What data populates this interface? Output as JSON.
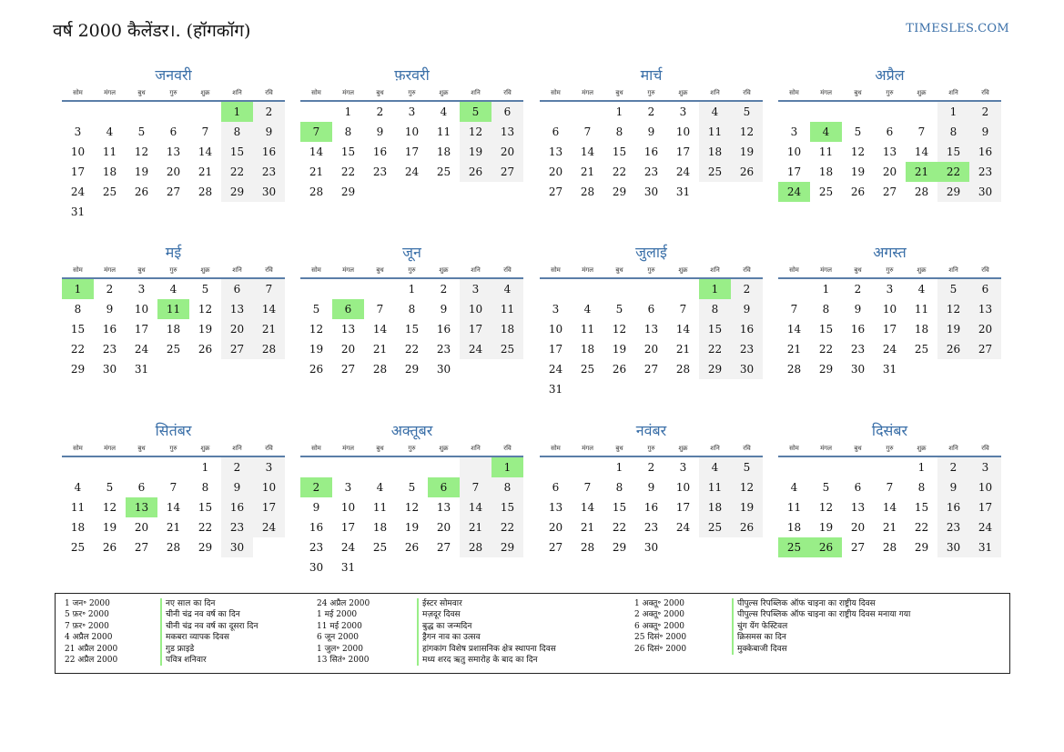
{
  "header": {
    "title": "वर्ष 2000 कैलेंडर।. (हॉगकॉग)",
    "site": "TIMESLES.COM"
  },
  "weekdays": [
    "सोम",
    "मंगल",
    "बुध",
    "गुरु",
    "शुक्र",
    "शनि",
    "रवि"
  ],
  "months": [
    {
      "name": "जनवरी",
      "offset": 5,
      "days": 31,
      "hol": [
        1
      ]
    },
    {
      "name": "फ़रवरी",
      "offset": 1,
      "days": 29,
      "hol": [
        5,
        7
      ]
    },
    {
      "name": "मार्च",
      "offset": 2,
      "days": 31,
      "hol": []
    },
    {
      "name": "अप्रैल",
      "offset": 5,
      "days": 30,
      "hol": [
        4,
        21,
        22,
        24
      ]
    },
    {
      "name": "मई",
      "offset": 0,
      "days": 31,
      "hol": [
        1,
        11
      ]
    },
    {
      "name": "जून",
      "offset": 3,
      "days": 30,
      "hol": [
        6
      ]
    },
    {
      "name": "जुलाई",
      "offset": 5,
      "days": 31,
      "hol": [
        1
      ]
    },
    {
      "name": "अगस्त",
      "offset": 1,
      "days": 31,
      "hol": []
    },
    {
      "name": "सितंबर",
      "offset": 4,
      "days": 30,
      "hol": [
        13
      ]
    },
    {
      "name": "अक्तूबर",
      "offset": 6,
      "days": 31,
      "hol": [
        1,
        2,
        6
      ]
    },
    {
      "name": "नवंबर",
      "offset": 2,
      "days": 30,
      "hol": []
    },
    {
      "name": "दिसंबर",
      "offset": 4,
      "days": 31,
      "hol": [
        25,
        26
      ]
    }
  ],
  "legend": {
    "col1_dates": [
      "1 जन॰ 2000",
      "5 फ़र॰ 2000",
      "7 फ़र॰ 2000",
      "4 अप्रैल 2000",
      "21 अप्रैल 2000",
      "22 अप्रैल 2000"
    ],
    "col1_names": [
      "नए साल का दिन",
      "चीनी चंद्र नव वर्ष का दिन",
      "चीनी चंद्र नव वर्ष का दूसरा दिन",
      "मकबरा व्यापक दिवस",
      "गुड फ्राइडे",
      "पवित्र शनिवार"
    ],
    "col2_dates": [
      "24 अप्रैल 2000",
      "1 मई 2000",
      "11 मई 2000",
      "6 जून 2000",
      "1 जुल॰ 2000",
      "13 सितं॰ 2000"
    ],
    "col2_names": [
      "ईस्टर सोमवार",
      "मज़दूर दिवस",
      "बुद्ध का जन्मदिन",
      "ड्रैगन नाव का उत्सव",
      "हांगकांग विशेष प्रशासनिक क्षेत्र स्थापना दिवस",
      "मध्य शरद ऋतु समारोह के बाद का दिन"
    ],
    "col3_dates": [
      "1 अक्तू॰ 2000",
      "2 अक्तू॰ 2000",
      "6 अक्तू॰ 2000",
      "25 दिसं॰ 2000",
      "26 दिसं॰ 2000"
    ],
    "col3_names": [
      "पीपुल्स रिपब्लिक ऑफ चाइना का राष्ट्रीय दिवस",
      "पीपुल्स रिपब्लिक ऑफ चाइना का राष्ट्रीय दिवस मनाया गया",
      "चुंग येंग फेस्टिवल",
      "क्रिसमस का दिन",
      "मुक्केबाजी दिवस"
    ]
  }
}
